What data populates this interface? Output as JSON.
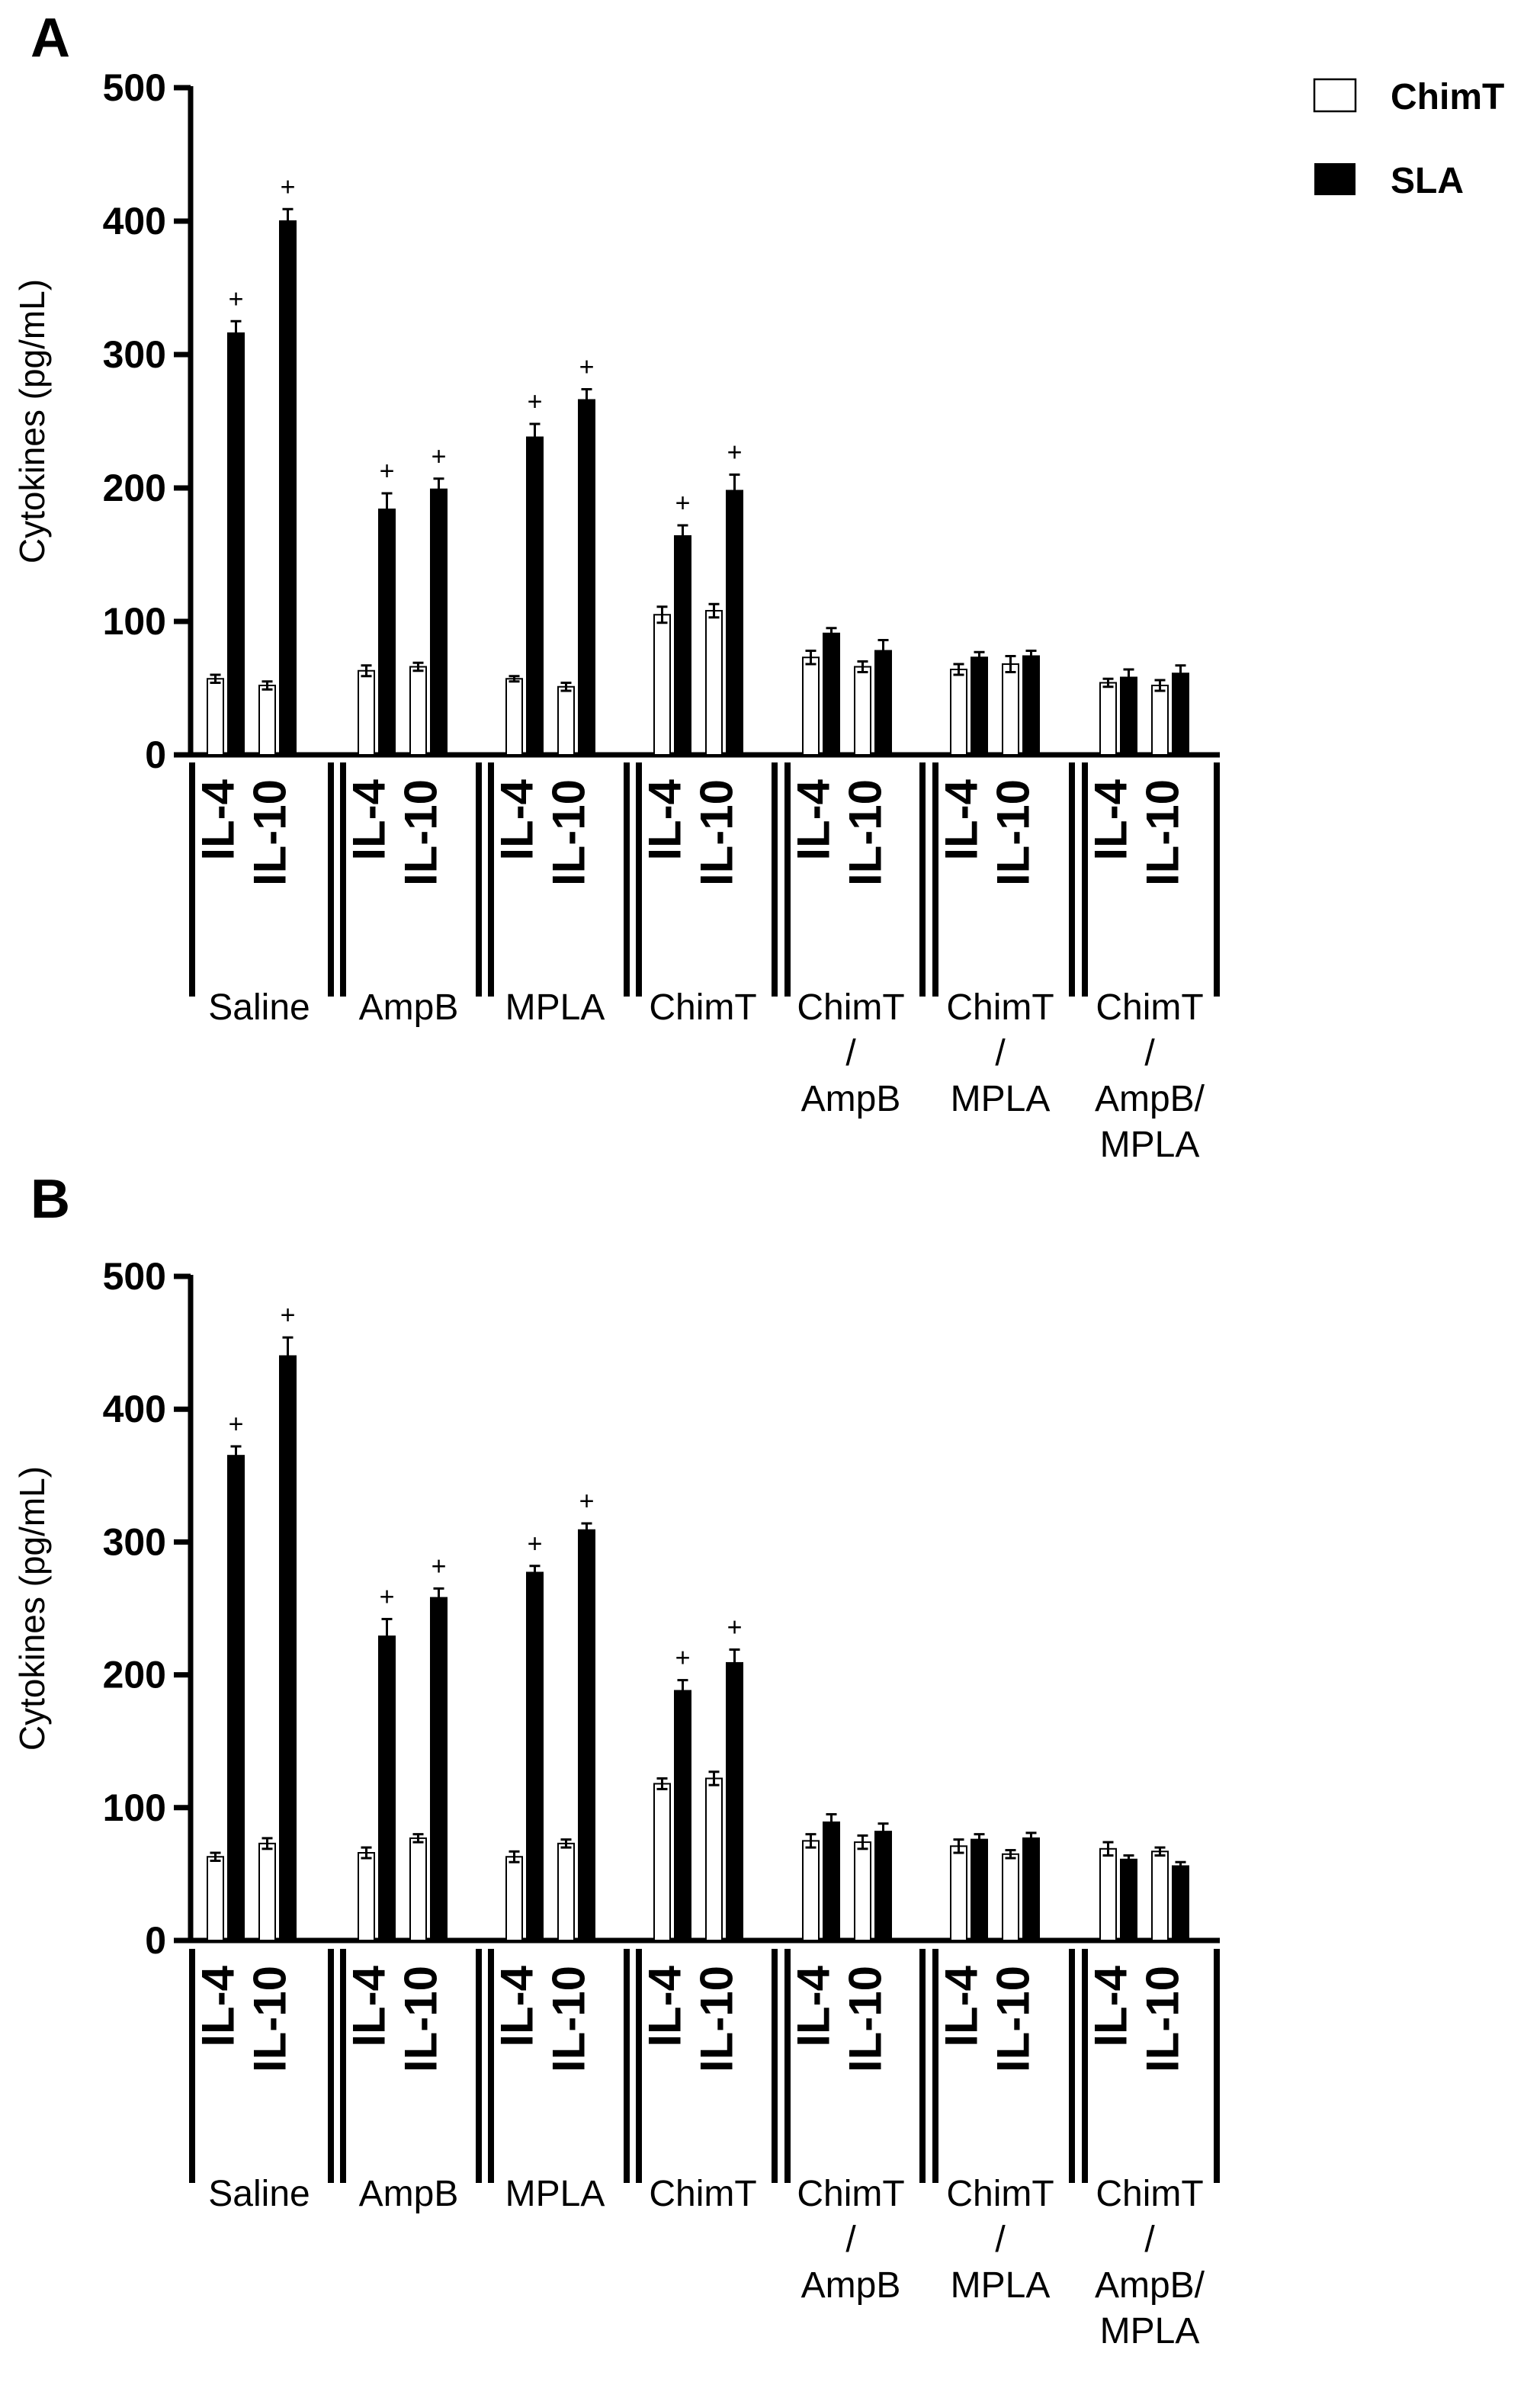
{
  "legend": {
    "items": [
      {
        "label": "ChimT",
        "fill": "#ffffff"
      },
      {
        "label": "SLA",
        "fill": "#000000"
      }
    ]
  },
  "chart_data": [
    {
      "type": "bar",
      "title": "A",
      "ylabel": "Cytokines (pg/mL)",
      "ylim": [
        0,
        500
      ],
      "yticks": [
        "0",
        "100",
        "200",
        "300",
        "400",
        "500"
      ],
      "cytokines": [
        "IL-4",
        "IL-10"
      ],
      "groups": [
        {
          "lines": [
            "Saline"
          ],
          "values": [
            [
              57,
              316
            ],
            [
              52,
              400
            ]
          ],
          "errors": [
            [
              3,
              9
            ],
            [
              3,
              9
            ]
          ],
          "sig": [
            [
              false,
              true
            ],
            [
              false,
              true
            ]
          ]
        },
        {
          "lines": [
            "AmpB"
          ],
          "values": [
            [
              63,
              184
            ],
            [
              66,
              199
            ]
          ],
          "errors": [
            [
              4,
              12
            ],
            [
              3,
              8
            ]
          ],
          "sig": [
            [
              false,
              true
            ],
            [
              false,
              true
            ]
          ]
        },
        {
          "lines": [
            "MPLA"
          ],
          "values": [
            [
              57,
              238
            ],
            [
              51,
              266
            ]
          ],
          "errors": [
            [
              2,
              10
            ],
            [
              3,
              8
            ]
          ],
          "sig": [
            [
              false,
              true
            ],
            [
              false,
              true
            ]
          ]
        },
        {
          "lines": [
            "ChimT"
          ],
          "values": [
            [
              105,
              164
            ],
            [
              108,
              198
            ]
          ],
          "errors": [
            [
              6,
              8
            ],
            [
              5,
              12
            ]
          ],
          "sig": [
            [
              false,
              true
            ],
            [
              false,
              true
            ]
          ]
        },
        {
          "lines": [
            "ChimT",
            "/",
            "AmpB"
          ],
          "values": [
            [
              73,
              91
            ],
            [
              66,
              78
            ]
          ],
          "errors": [
            [
              5,
              4
            ],
            [
              4,
              8
            ]
          ],
          "sig": [
            [
              false,
              false
            ],
            [
              false,
              false
            ]
          ]
        },
        {
          "lines": [
            "ChimT",
            "/",
            "MPLA"
          ],
          "values": [
            [
              64,
              73
            ],
            [
              68,
              74
            ]
          ],
          "errors": [
            [
              4,
              4
            ],
            [
              6,
              4
            ]
          ],
          "sig": [
            [
              false,
              false
            ],
            [
              false,
              false
            ]
          ]
        },
        {
          "lines": [
            "ChimT",
            "/",
            "AmpB/",
            "MPLA"
          ],
          "values": [
            [
              54,
              58
            ],
            [
              52,
              61
            ]
          ],
          "errors": [
            [
              3,
              6
            ],
            [
              4,
              6
            ]
          ],
          "sig": [
            [
              false,
              false
            ],
            [
              false,
              false
            ]
          ]
        }
      ],
      "series": [
        {
          "name": "ChimT"
        },
        {
          "name": "SLA"
        }
      ],
      "sig_symbol": "+"
    },
    {
      "type": "bar",
      "title": "B",
      "ylabel": "Cytokines (pg/mL)",
      "ylim": [
        0,
        500
      ],
      "yticks": [
        "0",
        "100",
        "200",
        "300",
        "400",
        "500"
      ],
      "cytokines": [
        "IL-4",
        "IL-10"
      ],
      "groups": [
        {
          "lines": [
            "Saline"
          ],
          "values": [
            [
              63,
              365
            ],
            [
              73,
              440
            ]
          ],
          "errors": [
            [
              3,
              7
            ],
            [
              4,
              14
            ]
          ],
          "sig": [
            [
              false,
              true
            ],
            [
              false,
              true
            ]
          ]
        },
        {
          "lines": [
            "AmpB"
          ],
          "values": [
            [
              66,
              229
            ],
            [
              77,
              258
            ]
          ],
          "errors": [
            [
              4,
              13
            ],
            [
              3,
              7
            ]
          ],
          "sig": [
            [
              false,
              true
            ],
            [
              false,
              true
            ]
          ]
        },
        {
          "lines": [
            "MPLA"
          ],
          "values": [
            [
              63,
              277
            ],
            [
              73,
              309
            ]
          ],
          "errors": [
            [
              4,
              5
            ],
            [
              3,
              5
            ]
          ],
          "sig": [
            [
              false,
              true
            ],
            [
              false,
              true
            ]
          ]
        },
        {
          "lines": [
            "ChimT"
          ],
          "values": [
            [
              118,
              188
            ],
            [
              122,
              209
            ]
          ],
          "errors": [
            [
              4,
              8
            ],
            [
              5,
              10
            ]
          ],
          "sig": [
            [
              false,
              true
            ],
            [
              false,
              true
            ]
          ]
        },
        {
          "lines": [
            "ChimT",
            "/",
            "AmpB"
          ],
          "values": [
            [
              75,
              89
            ],
            [
              74,
              82
            ]
          ],
          "errors": [
            [
              5,
              6
            ],
            [
              5,
              6
            ]
          ],
          "sig": [
            [
              false,
              false
            ],
            [
              false,
              false
            ]
          ]
        },
        {
          "lines": [
            "ChimT",
            "/",
            "MPLA"
          ],
          "values": [
            [
              71,
              76
            ],
            [
              65,
              77
            ]
          ],
          "errors": [
            [
              5,
              4
            ],
            [
              3,
              4
            ]
          ],
          "sig": [
            [
              false,
              false
            ],
            [
              false,
              false
            ]
          ]
        },
        {
          "lines": [
            "ChimT",
            "/",
            "AmpB/",
            "MPLA"
          ],
          "values": [
            [
              69,
              61
            ],
            [
              67,
              56
            ]
          ],
          "errors": [
            [
              5,
              3
            ],
            [
              3,
              3
            ]
          ],
          "sig": [
            [
              false,
              false
            ],
            [
              false,
              false
            ]
          ]
        }
      ],
      "series": [
        {
          "name": "ChimT"
        },
        {
          "name": "SLA"
        }
      ],
      "sig_symbol": "+"
    }
  ]
}
